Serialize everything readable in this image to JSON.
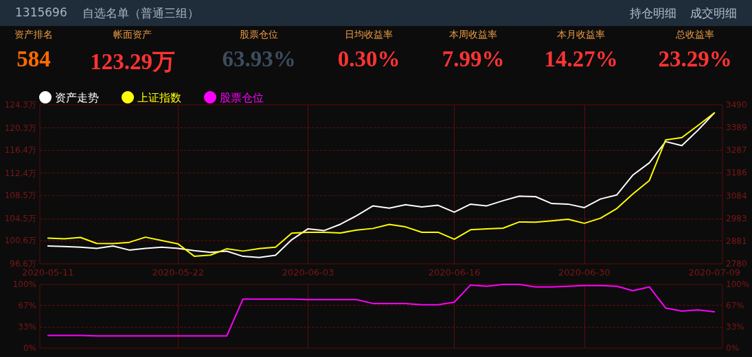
{
  "chart_data": [
    {
      "type": "other",
      "title": "1315696",
      "subtitle": "自选名单（普通三组）",
      "annotations": [
        "持仓明细",
        "成交明细"
      ],
      "categories": [
        "资产排名",
        "帐面资产",
        "股票仓位",
        "日均收益率",
        "本周收益率",
        "本月收益率",
        "总收益率"
      ],
      "value_labels": [
        "584",
        "123.29万",
        "63.93%",
        "0.30%",
        "7.99%",
        "14.27%",
        "23.29%"
      ],
      "colors": [
        "#ff6a00",
        "#ff3333",
        "#3e4c5e",
        "#ff3333",
        "#ff3333",
        "#ff3333",
        "#ff3333"
      ]
    },
    {
      "type": "line",
      "categories": [
        "2020-05-11",
        null,
        null,
        null,
        null,
        null,
        null,
        null,
        "2020-05-22",
        null,
        null,
        null,
        null,
        null,
        null,
        null,
        "2020-06-03",
        null,
        null,
        null,
        null,
        null,
        null,
        null,
        null,
        "2020-06-16",
        null,
        null,
        null,
        null,
        null,
        null,
        null,
        "2020-06-30",
        null,
        null,
        null,
        null,
        null,
        null,
        null,
        "2020-07-09"
      ],
      "series": [
        {
          "name": "资产走势",
          "color": "#ffffff",
          "values": [
            99.7,
            99.6,
            99.5,
            99.3,
            99.7,
            99.0,
            99.3,
            99.5,
            99.3,
            98.9,
            98.6,
            98.8,
            97.9,
            97.7,
            98.1,
            100.8,
            102.7,
            102.4,
            103.5,
            105.0,
            106.7,
            106.3,
            106.9,
            106.5,
            106.8,
            105.6,
            107.0,
            106.7,
            107.6,
            108.4,
            108.3,
            107.1,
            107.0,
            106.4,
            107.9,
            108.6,
            112.1,
            114.2,
            117.9,
            117.2,
            119.9,
            122.9
          ]
        },
        {
          "name": "上证指数",
          "color": "#ffff00",
          "axis": "y2",
          "values": [
            2895,
            2892,
            2898,
            2871,
            2870,
            2876,
            2899,
            2884,
            2869,
            2814,
            2819,
            2847,
            2837,
            2848,
            2854,
            2917,
            2921,
            2921,
            2918,
            2931,
            2938,
            2956,
            2945,
            2921,
            2921,
            2890,
            2932,
            2936,
            2939,
            2967,
            2966,
            2972,
            2979,
            2961,
            2984,
            3027,
            3093,
            3152,
            3333,
            3344,
            3398,
            3454
          ]
        }
      ],
      "ylim": [
        96.6,
        124.3
      ],
      "yticks": [
        {
          "value": 96.6,
          "label": "96.6万"
        },
        {
          "value": 100.6,
          "label": "100.6万"
        },
        {
          "value": 104.5,
          "label": "104.5万"
        },
        {
          "value": 108.5,
          "label": "108.5万"
        },
        {
          "value": 112.4,
          "label": "112.4万"
        },
        {
          "value": 116.4,
          "label": "116.4万"
        },
        {
          "value": 120.3,
          "label": "120.3万"
        },
        {
          "value": 124.3,
          "label": "124.3万"
        }
      ],
      "y2lim": [
        2780,
        3490
      ],
      "y2ticks": [
        2780,
        2881,
        2983,
        3084,
        3186,
        3287,
        3389,
        3490
      ],
      "grid": true,
      "legend": "top left",
      "marker": "none",
      "line_style": "solid"
    },
    {
      "type": "line",
      "categories": [
        "2020-05-11",
        null,
        null,
        null,
        null,
        null,
        null,
        null,
        "2020-05-22",
        null,
        null,
        null,
        null,
        null,
        null,
        null,
        "2020-06-03",
        null,
        null,
        null,
        null,
        null,
        null,
        null,
        null,
        "2020-06-16",
        null,
        null,
        null,
        null,
        null,
        null,
        null,
        "2020-06-30",
        null,
        null,
        null,
        null,
        null,
        null,
        null,
        "2020-07-09"
      ],
      "series": [
        {
          "name": "股票仓位",
          "color": "#ff00ff",
          "values": [
            20,
            20,
            20,
            19,
            19,
            19,
            19,
            19,
            19,
            19,
            19,
            19,
            77,
            77,
            77,
            77,
            76,
            76,
            76,
            76,
            70,
            70,
            70,
            68,
            68,
            72,
            99,
            97,
            100,
            100,
            96,
            96,
            97,
            98,
            98,
            97,
            90,
            96,
            63,
            58,
            60,
            57
          ]
        }
      ],
      "ylim": [
        0,
        100
      ],
      "yticks": [
        {
          "value": 0,
          "label": "0%"
        },
        {
          "value": 33,
          "label": "33%"
        },
        {
          "value": 67,
          "label": "67%"
        },
        {
          "value": 100,
          "label": "100%"
        }
      ],
      "y2lim": [
        0,
        100
      ],
      "y2ticks": [
        {
          "value": 0,
          "label": "0%"
        },
        {
          "value": 33,
          "label": "33%"
        },
        {
          "value": 67,
          "label": "67%"
        },
        {
          "value": 100,
          "label": "100%"
        }
      ],
      "tick_labels": "y",
      "grid": true,
      "legend": "top left",
      "marker": "none",
      "line_style": "solid"
    }
  ]
}
